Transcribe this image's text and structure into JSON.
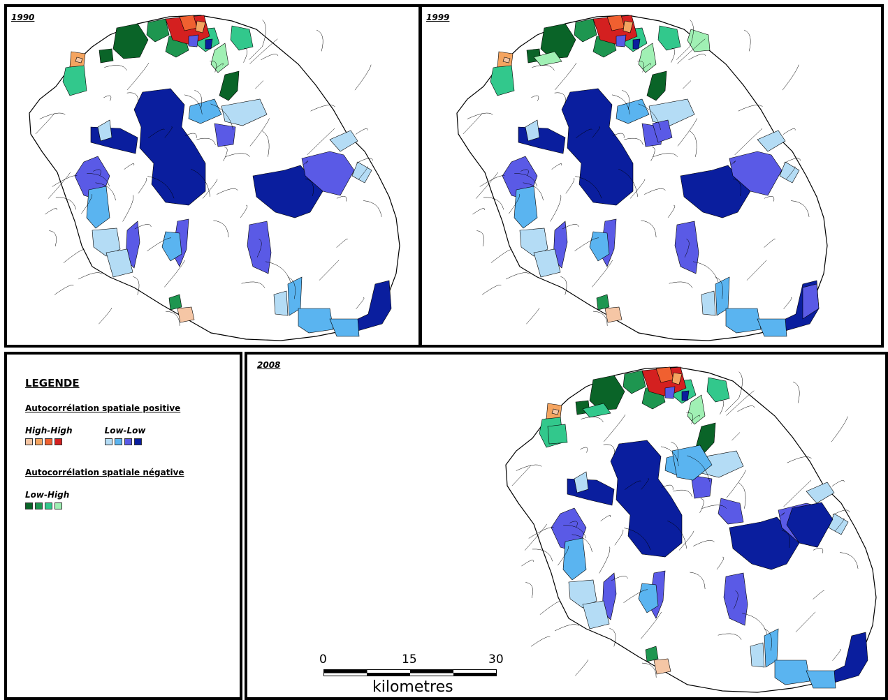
{
  "maps": [
    {
      "year": "1990"
    },
    {
      "year": "1999"
    },
    {
      "year": "2008"
    }
  ],
  "legend": {
    "title": "LEGENDE",
    "positive_heading": "Autocorrélation spatiale positive",
    "negative_heading": "Autocorrélation spatiale négative",
    "classes": {
      "high_high": {
        "label": "High-High",
        "colors": [
          "#f5c6a5",
          "#f4a460",
          "#f06030",
          "#d42020"
        ]
      },
      "low_low": {
        "label": "Low-Low",
        "colors": [
          "#b4dcf5",
          "#5ab4f0",
          "#5a5ae6",
          "#0a1e9e"
        ]
      },
      "low_high": {
        "label": "Low-High",
        "colors": [
          "#0a6428",
          "#1e9650",
          "#32c88c",
          "#a0f0b4"
        ]
      }
    }
  },
  "scale": {
    "ticks": [
      "0",
      "15",
      "30"
    ],
    "unit": "kilometres"
  }
}
